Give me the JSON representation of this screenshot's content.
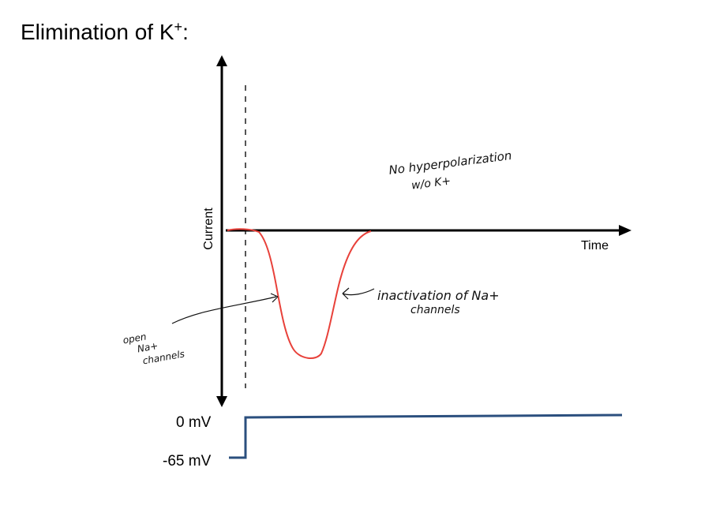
{
  "title": "Elimination of K",
  "title_superscript": "+",
  "title_suffix": ":",
  "axes": {
    "y_label": "Current",
    "x_label": "Time"
  },
  "voltage": {
    "top_label": "0 mV",
    "bottom_label": "-65 mV"
  },
  "annotations": {
    "no_hyperpolarization_line1": "No hyperpolarization",
    "no_hyperpolarization_line2": "w/o   K+",
    "inactivation_line1": "inactivation of Na+",
    "inactivation_line2": "channels",
    "open_line1": "open",
    "open_line2": "Na+",
    "open_line3": "channels"
  },
  "colors": {
    "current_trace": "#e8413a",
    "voltage_trace": "#2b4f7e",
    "axis": "#000000"
  }
}
